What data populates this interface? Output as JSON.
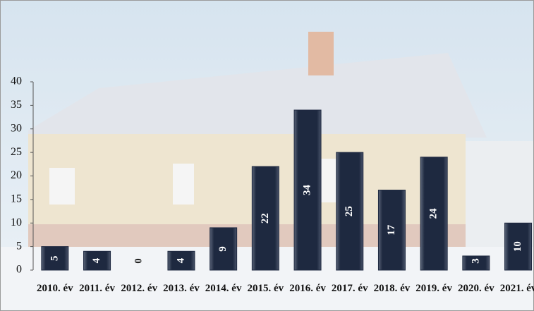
{
  "chart_data": {
    "type": "bar",
    "categories": [
      "2010. év",
      "2011. év",
      "2012. év",
      "2013. év",
      "2014. év",
      "2015. év",
      "2016. év",
      "2017. év",
      "2018. év",
      "2019. év",
      "2020. év",
      "2021. év"
    ],
    "values": [
      5,
      4,
      0,
      4,
      9,
      22,
      34,
      25,
      17,
      24,
      3,
      10
    ],
    "color": "#1e2940",
    "ylim": [
      0,
      40
    ],
    "yticks": [
      0,
      5,
      10,
      15,
      20,
      25,
      30,
      35,
      40
    ]
  }
}
